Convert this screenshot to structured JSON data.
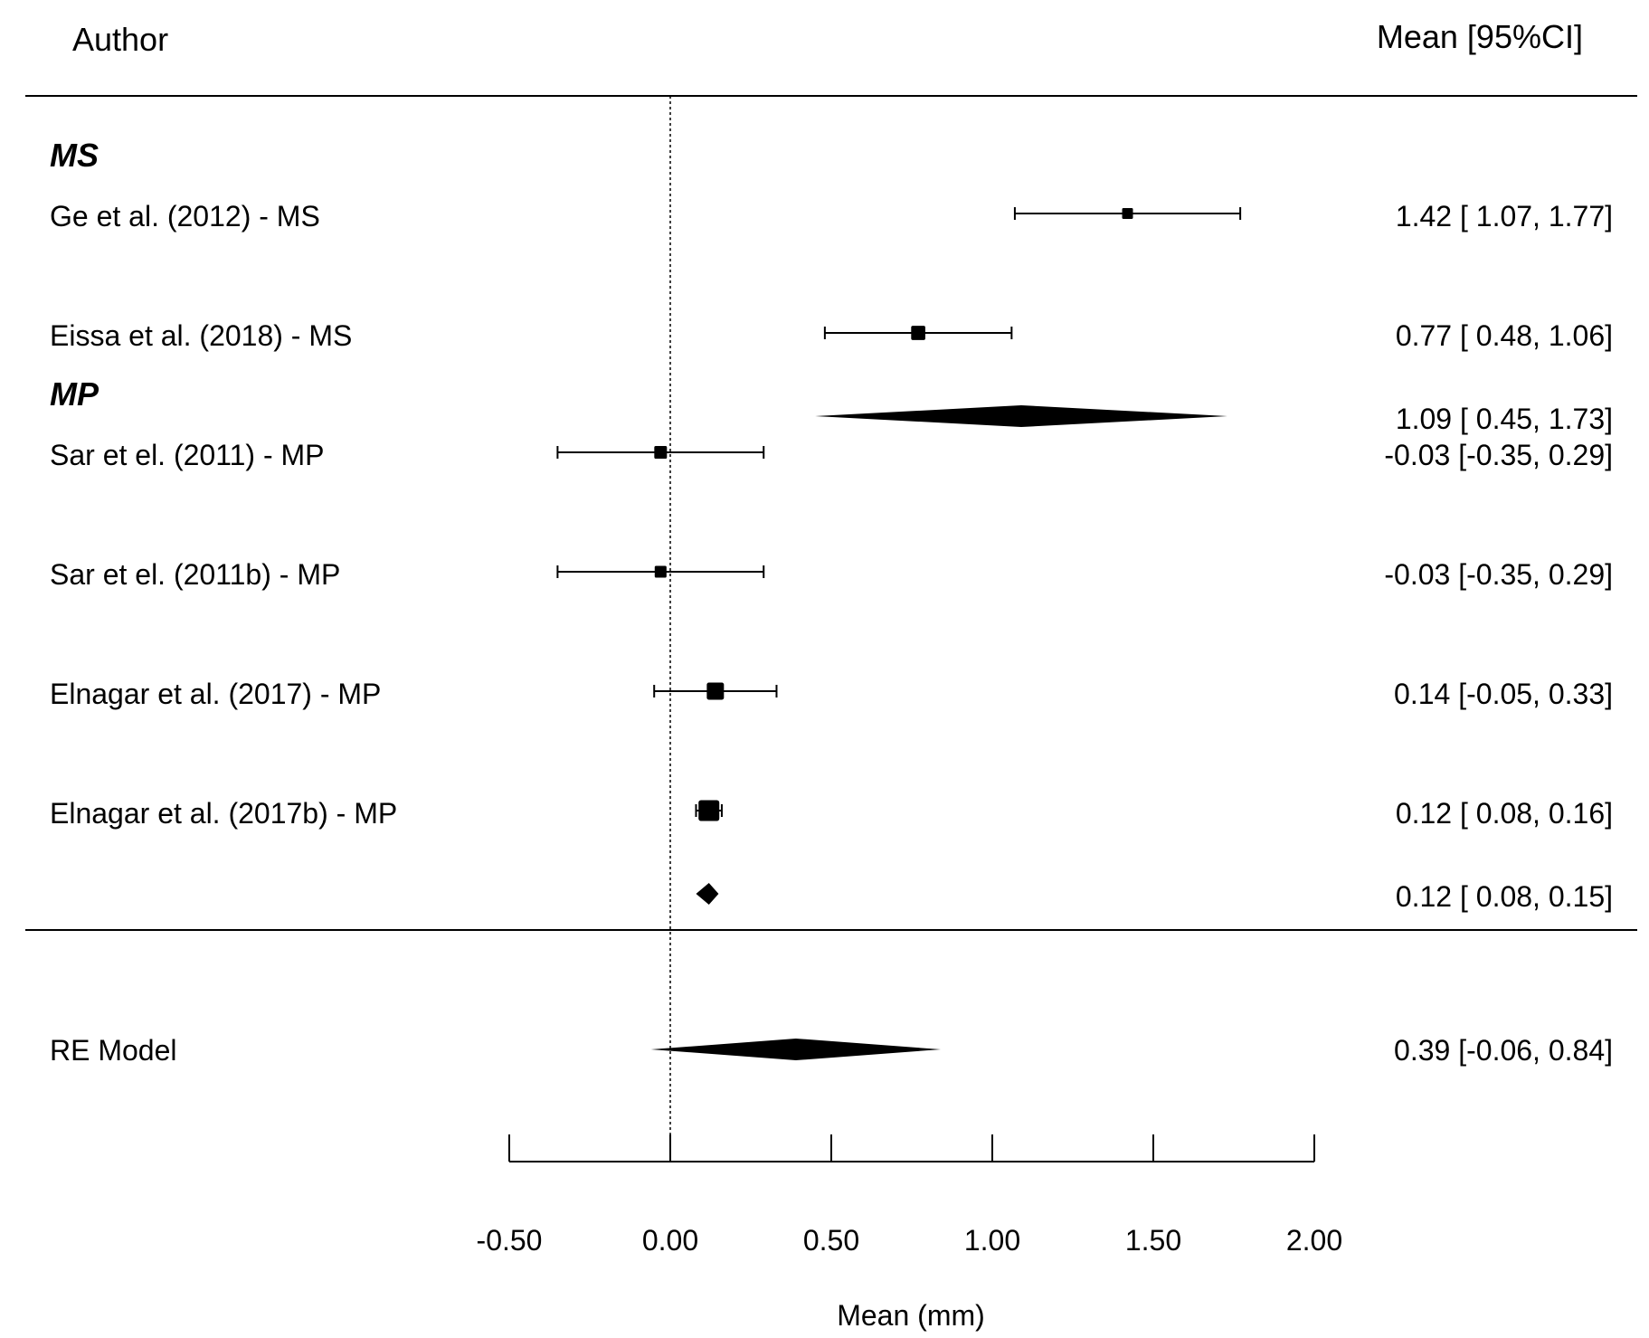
{
  "chart_data": {
    "type": "forest",
    "header": {
      "author": "Author",
      "estimate": "Mean [95%CI]"
    },
    "xlabel": "Mean (mm)",
    "xlim": [
      -0.5,
      2.0
    ],
    "reference_line": 0,
    "xticks": [
      -0.5,
      0,
      0.5,
      1.0,
      1.5,
      2.0
    ],
    "xtick_labels": [
      "-0.50",
      "0.00",
      "0.50",
      "1.00",
      "1.50",
      "2.00"
    ],
    "groups": [
      {
        "name": "MS",
        "studies": [
          {
            "label": "Ge et al. (2012) - MS",
            "mean": 1.42,
            "lower": 1.07,
            "upper": 1.77,
            "ci_text": "1.42 [ 1.07, 1.77]",
            "weight": 0.15
          },
          {
            "label": "Eissa et al. (2018) - MS",
            "mean": 0.77,
            "lower": 0.48,
            "upper": 1.06,
            "ci_text": "0.77 [ 0.48, 1.06]",
            "weight": 0.35
          }
        ],
        "summary": {
          "mean": 1.09,
          "lower": 0.45,
          "upper": 1.73,
          "ci_text": "1.09 [ 0.45, 1.73]"
        }
      },
      {
        "name": "MP",
        "studies": [
          {
            "label": "Sar et el. (2011) - MP",
            "mean": -0.03,
            "lower": -0.35,
            "upper": 0.29,
            "ci_text": "-0.03 [-0.35, 0.29]",
            "weight": 0.25
          },
          {
            "label": "Sar et el. (2011b) - MP",
            "mean": -0.03,
            "lower": -0.35,
            "upper": 0.29,
            "ci_text": "-0.03 [-0.35, 0.29]",
            "weight": 0.2
          },
          {
            "label": "Elnagar et al. (2017) - MP",
            "mean": 0.14,
            "lower": -0.05,
            "upper": 0.33,
            "ci_text": "0.14 [-0.05, 0.33]",
            "weight": 0.6
          },
          {
            "label": "Elnagar et al. (2017b) - MP",
            "mean": 0.12,
            "lower": 0.08,
            "upper": 0.16,
            "ci_text": "0.12 [ 0.08, 0.16]",
            "weight": 1.0
          }
        ],
        "summary": {
          "mean": 0.12,
          "lower": 0.08,
          "upper": 0.15,
          "ci_text": "0.12 [ 0.08, 0.15]"
        }
      }
    ],
    "overall": {
      "label": "RE Model",
      "mean": 0.39,
      "lower": -0.06,
      "upper": 0.84,
      "ci_text": "0.39 [-0.06, 0.84]"
    }
  }
}
